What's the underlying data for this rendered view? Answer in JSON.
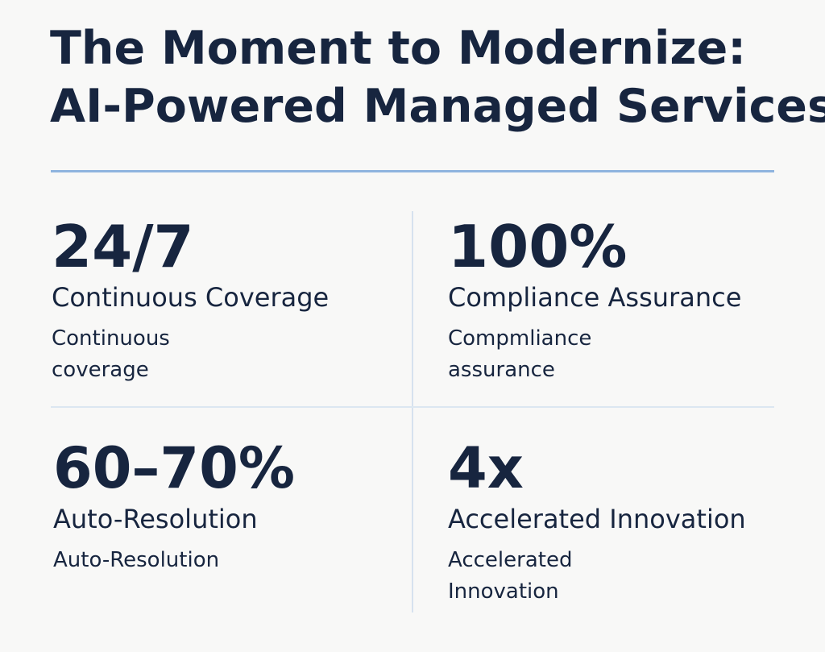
{
  "title": {
    "line1": "The Moment to Modernize:",
    "line2": "AI-Powered Managed Services"
  },
  "stats": [
    {
      "value": "24/7",
      "label": "Continuous Coverage",
      "description": "Continuous coverage"
    },
    {
      "value": "100%",
      "label": "Compliance Assurance",
      "description": "Compmliance assurance"
    },
    {
      "value": "60–70%",
      "label": "Auto-Resolution",
      "description": "Auto-Resolution"
    },
    {
      "value": "4x",
      "label": "Accelerated Innovation",
      "description": "Accelerated Innovation"
    }
  ],
  "colors": {
    "background": "#f8f8f7",
    "text": "#17253f",
    "title_rule": "#8fb4df",
    "grid_divider": "#dce7f1"
  }
}
